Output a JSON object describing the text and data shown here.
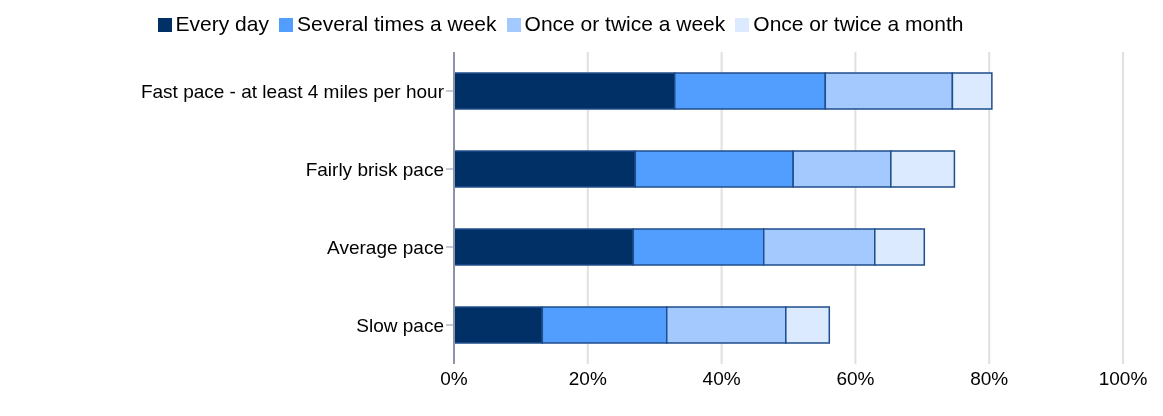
{
  "chart_data": {
    "type": "bar",
    "orientation": "horizontal",
    "stacked": true,
    "categories": [
      "Fast pace - at least 4 miles per hour",
      "Fairly brisk pace",
      "Average pace",
      "Slow pace"
    ],
    "series": [
      {
        "name": "Every day",
        "color": "#003066",
        "values": [
          33.0,
          27.1,
          26.8,
          13.2
        ]
      },
      {
        "name": "Several times a week",
        "color": "#529eff",
        "values": [
          22.5,
          23.6,
          19.5,
          18.6
        ]
      },
      {
        "name": "Once or twice a week",
        "color": "#a3c9ff",
        "values": [
          19.0,
          14.6,
          16.6,
          17.8
        ]
      },
      {
        "name": "Once or twice a month",
        "color": "#dbeaff",
        "values": [
          5.9,
          9.5,
          7.4,
          6.5
        ]
      }
    ],
    "xlim": [
      0,
      100
    ],
    "xticks": [
      {
        "value": 0,
        "label": "0%"
      },
      {
        "value": 20,
        "label": "20%"
      },
      {
        "value": 40,
        "label": "40%"
      },
      {
        "value": 60,
        "label": "60%"
      },
      {
        "value": 80,
        "label": "80%"
      },
      {
        "value": 100,
        "label": "100%"
      }
    ],
    "grid": "x",
    "legend": "top"
  }
}
